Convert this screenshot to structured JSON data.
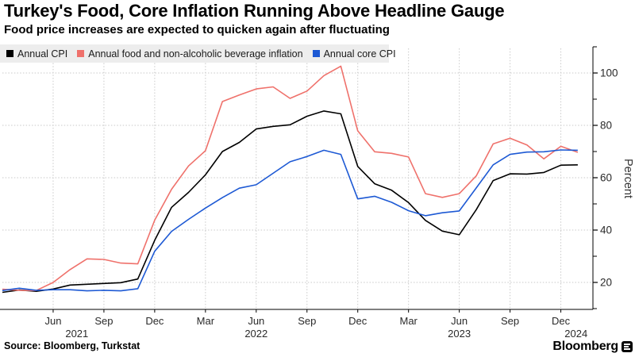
{
  "header": {
    "title": "Turkey's Food, Core Inflation Running Above Headline Gauge",
    "subtitle": "Food price increases are expected to quicken again after fluctuating"
  },
  "legend": [
    {
      "label": "Annual CPI",
      "color": "#000000"
    },
    {
      "label": "Annual food and non-alcoholic beverage inflation",
      "color": "#ef716b"
    },
    {
      "label": "Annual core CPI",
      "color": "#1d59d4"
    }
  ],
  "footer": {
    "source": "Source: Bloomberg, Turkstat",
    "brand": "Bloomberg"
  },
  "chart_data": {
    "type": "line",
    "title": "Turkey's Food, Core Inflation Running Above Headline Gauge",
    "subtitle": "Food price increases are expected to quicken again after fluctuating",
    "ylabel": "Percent",
    "ylim": [
      10,
      110
    ],
    "grid": true,
    "legend_position": "top-left",
    "y_axis_side": "right",
    "y_ticks_labeled": [
      20,
      40,
      60,
      80,
      100
    ],
    "y_ticks_minor": [
      10,
      30,
      50,
      70,
      90,
      110
    ],
    "x": [
      "Mar 2021",
      "Apr 2021",
      "May 2021",
      "Jun 2021",
      "Jul 2021",
      "Aug 2021",
      "Sep 2021",
      "Oct 2021",
      "Nov 2021",
      "Dec 2021",
      "Jan 2022",
      "Feb 2022",
      "Mar 2022",
      "Apr 2022",
      "May 2022",
      "Jun 2022",
      "Jul 2022",
      "Aug 2022",
      "Sep 2022",
      "Oct 2022",
      "Nov 2022",
      "Dec 2022",
      "Jan 2023",
      "Feb 2023",
      "Mar 2023",
      "Apr 2023",
      "May 2023",
      "Jun 2023",
      "Jul 2023",
      "Aug 2023",
      "Sep 2023",
      "Oct 2023",
      "Nov 2023",
      "Dec 2023",
      "Jan 2024"
    ],
    "x_ticks": [
      {
        "label": "Jun",
        "month_index": 3
      },
      {
        "label": "Sep",
        "month_index": 6
      },
      {
        "label": "Dec",
        "month_index": 9
      },
      {
        "label": "Mar",
        "month_index": 12
      },
      {
        "label": "Jun",
        "month_index": 15
      },
      {
        "label": "Sep",
        "month_index": 18
      },
      {
        "label": "Dec",
        "month_index": 21
      },
      {
        "label": "Mar",
        "month_index": 24
      },
      {
        "label": "Jun",
        "month_index": 27
      },
      {
        "label": "Sep",
        "month_index": 30
      },
      {
        "label": "Dec",
        "month_index": 33
      }
    ],
    "year_labels": [
      {
        "label": "2021",
        "month_index": 4.4
      },
      {
        "label": "2022",
        "month_index": 15
      },
      {
        "label": "2023",
        "month_index": 27
      },
      {
        "label": "2024",
        "month_index": 33.9
      }
    ],
    "series": [
      {
        "name": "Annual CPI",
        "color": "#000000",
        "values": [
          16.2,
          17.1,
          16.6,
          17.5,
          19.0,
          19.3,
          19.6,
          19.9,
          21.3,
          36.1,
          48.7,
          54.4,
          61.1,
          70.0,
          73.5,
          78.6,
          79.6,
          80.2,
          83.5,
          85.5,
          84.4,
          64.3,
          57.7,
          55.2,
          50.5,
          43.7,
          39.6,
          38.2,
          47.8,
          58.9,
          61.5,
          61.4,
          62.0,
          64.8,
          64.9
        ]
      },
      {
        "name": "Annual food and non-alcoholic beverage inflation",
        "color": "#ef716b",
        "values": [
          17.4,
          17.0,
          16.9,
          20.0,
          24.9,
          29.0,
          28.8,
          27.4,
          27.1,
          43.8,
          55.6,
          64.5,
          70.3,
          89.1,
          91.6,
          93.9,
          94.7,
          90.3,
          93.1,
          99.0,
          102.6,
          77.9,
          69.9,
          69.3,
          67.9,
          53.9,
          52.5,
          53.9,
          60.7,
          72.9,
          75.1,
          72.5,
          67.2,
          72.0,
          69.7
        ]
      },
      {
        "name": "Annual core CPI",
        "color": "#1d59d4",
        "values": [
          16.9,
          17.8,
          17.0,
          17.2,
          17.2,
          16.8,
          17.0,
          16.8,
          17.6,
          31.9,
          39.5,
          44.1,
          48.4,
          52.4,
          56.0,
          57.3,
          61.7,
          66.1,
          68.1,
          70.5,
          68.9,
          51.9,
          52.9,
          50.6,
          47.4,
          45.5,
          46.6,
          47.3,
          56.1,
          64.9,
          68.9,
          69.8,
          69.9,
          70.6,
          70.5
        ]
      }
    ]
  }
}
